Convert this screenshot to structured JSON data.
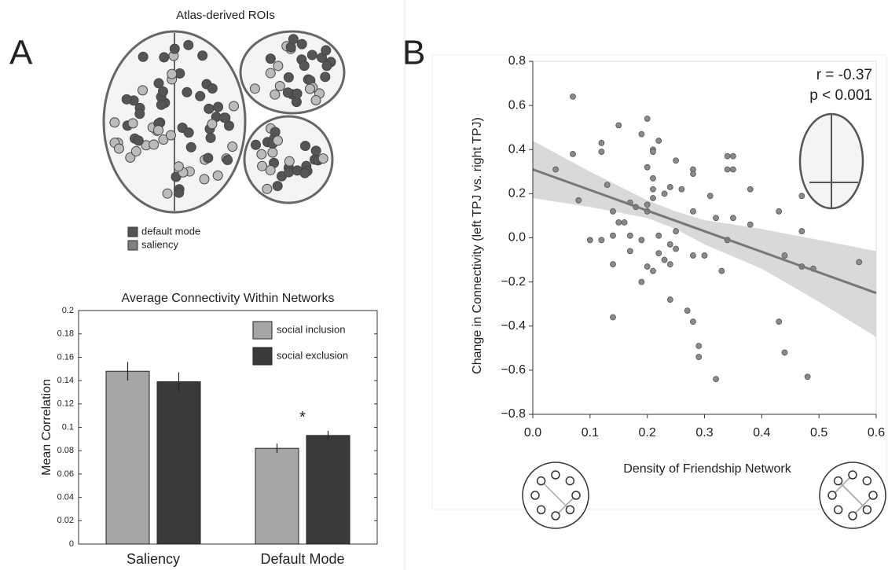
{
  "panel_labels": [
    "A",
    "B"
  ],
  "atlas": {
    "title": "Atlas-derived ROIs",
    "legend": [
      {
        "name": "default mode",
        "color": "#555555"
      },
      {
        "name": "saliency",
        "color": "#7f7f7f"
      }
    ]
  },
  "chart_data": [
    {
      "type": "bar",
      "title": "Average Connectivity Within Networks",
      "y_label": "Mean Correlation",
      "categories": [
        "Saliency",
        "Default Mode"
      ],
      "series": [
        {
          "name": "social inclusion",
          "color": "#a6a6a6",
          "values": [
            0.148,
            0.082
          ],
          "errors": [
            0.008,
            0.004
          ]
        },
        {
          "name": "social exclusion",
          "color": "#3a3a3a",
          "values": [
            0.139,
            0.093
          ],
          "errors": [
            0.008,
            0.004
          ]
        }
      ],
      "annotation": "*",
      "ylim": [
        0,
        0.2
      ],
      "yticks": [
        0,
        0.02,
        0.04,
        0.06,
        0.08,
        0.1,
        0.12,
        0.14,
        0.16,
        0.18,
        0.2
      ]
    },
    {
      "type": "scatter",
      "x_label": "Density of Friendship Network",
      "y_label": "Change in Connectivity (left TPJ vs. right TPJ)",
      "annotations": [
        "r = -0.37",
        "p < 0.001"
      ],
      "color": "#8a8a8a",
      "x": [
        0.04,
        0.07,
        0.07,
        0.08,
        0.1,
        0.12,
        0.12,
        0.13,
        0.12,
        0.14,
        0.14,
        0.14,
        0.14,
        0.15,
        0.15,
        0.16,
        0.17,
        0.17,
        0.17,
        0.18,
        0.19,
        0.19,
        0.19,
        0.2,
        0.2,
        0.2,
        0.2,
        0.2,
        0.21,
        0.21,
        0.21,
        0.21,
        0.21,
        0.21,
        0.22,
        0.22,
        0.22,
        0.23,
        0.23,
        0.24,
        0.24,
        0.24,
        0.24,
        0.25,
        0.25,
        0.25,
        0.26,
        0.27,
        0.28,
        0.28,
        0.28,
        0.28,
        0.28,
        0.29,
        0.29,
        0.3,
        0.31,
        0.32,
        0.32,
        0.33,
        0.34,
        0.34,
        0.35,
        0.35,
        0.34,
        0.35,
        0.38,
        0.38,
        0.43,
        0.43,
        0.44,
        0.44,
        0.47,
        0.47,
        0.47,
        0.48,
        0.49,
        0.57
      ],
      "values": [
        0.31,
        0.64,
        0.38,
        0.17,
        -0.01,
        0.43,
        0.39,
        0.24,
        -0.01,
        0.12,
        0.01,
        -0.12,
        -0.36,
        0.51,
        0.07,
        0.07,
        0.16,
        0.01,
        -0.06,
        0.14,
        0.47,
        -0.01,
        -0.2,
        0.54,
        0.12,
        0.32,
        0.15,
        -0.13,
        0.4,
        0.39,
        0.22,
        0.18,
        0.27,
        -0.15,
        0.01,
        0.44,
        -0.07,
        0.2,
        -0.1,
        -0.03,
        -0.12,
        -0.28,
        0.23,
        0.35,
        0.03,
        -0.05,
        0.22,
        -0.33,
        0.12,
        0.31,
        0.29,
        -0.08,
        -0.38,
        -0.49,
        -0.54,
        -0.08,
        0.19,
        -0.64,
        0.09,
        -0.15,
        0.37,
        0.31,
        0.37,
        0.31,
        -0.01,
        0.09,
        0.22,
        0.06,
        -0.38,
        0.12,
        -0.08,
        -0.52,
        0.03,
        -0.13,
        0.19,
        -0.63,
        -0.14,
        -0.11
      ],
      "fit": {
        "color": "#777777",
        "x": [
          0,
          0.6
        ],
        "y": [
          0.31,
          -0.25
        ]
      },
      "band": {
        "color": "#d9d9d9",
        "x": [
          0,
          0.1,
          0.2,
          0.25,
          0.3,
          0.4,
          0.5,
          0.6
        ],
        "upper": [
          0.44,
          0.3,
          0.17,
          0.12,
          0.08,
          0.04,
          -0.01,
          -0.06
        ],
        "lower": [
          0.18,
          0.14,
          0.09,
          0.04,
          -0.03,
          -0.14,
          -0.29,
          -0.45
        ]
      },
      "xlim": [
        0,
        0.6
      ],
      "xticks": [
        {
          "value": 0,
          "label": "0.0"
        },
        0.1,
        0.2,
        0.3,
        0.4,
        0.5,
        0.6
      ],
      "ylim": [
        -0.8,
        0.8
      ],
      "yticks": [
        {
          "value": -0.8,
          "label": "−0.8"
        },
        {
          "value": -0.6,
          "label": "−0.6"
        },
        {
          "value": -0.4,
          "label": "−0.4"
        },
        {
          "value": -0.2,
          "label": "−0.2"
        },
        {
          "value": 0,
          "label": "0.0"
        },
        0.2,
        0.4,
        0.6,
        0.8
      ]
    }
  ]
}
